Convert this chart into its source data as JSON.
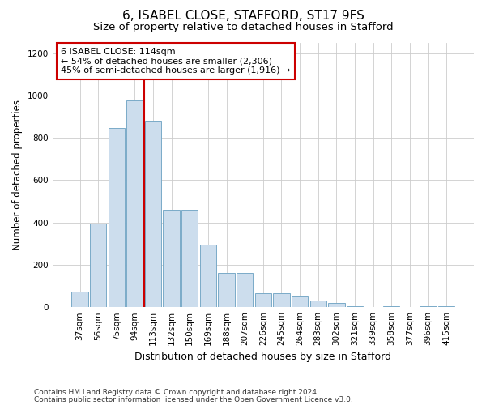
{
  "title1": "6, ISABEL CLOSE, STAFFORD, ST17 9FS",
  "title2": "Size of property relative to detached houses in Stafford",
  "xlabel": "Distribution of detached houses by size in Stafford",
  "ylabel": "Number of detached properties",
  "annotation_line1": "6 ISABEL CLOSE: 114sqm",
  "annotation_line2": "← 54% of detached houses are smaller (2,306)",
  "annotation_line3": "45% of semi-detached houses are larger (1,916) →",
  "footnote1": "Contains HM Land Registry data © Crown copyright and database right 2024.",
  "footnote2": "Contains public sector information licensed under the Open Government Licence v3.0.",
  "categories": [
    "37sqm",
    "56sqm",
    "75sqm",
    "94sqm",
    "113sqm",
    "132sqm",
    "150sqm",
    "169sqm",
    "188sqm",
    "207sqm",
    "226sqm",
    "245sqm",
    "264sqm",
    "283sqm",
    "302sqm",
    "321sqm",
    "339sqm",
    "358sqm",
    "377sqm",
    "396sqm",
    "415sqm"
  ],
  "values": [
    75,
    395,
    845,
    975,
    880,
    460,
    460,
    295,
    160,
    160,
    65,
    65,
    50,
    30,
    20,
    5,
    0,
    5,
    0,
    5,
    3
  ],
  "bar_color": "#ccdded",
  "bar_edge_color": "#7aaac8",
  "highlight_x": "113sqm",
  "highlight_color": "#cc0000",
  "ylim": [
    0,
    1250
  ],
  "yticks": [
    0,
    200,
    400,
    600,
    800,
    1000,
    1200
  ],
  "background_color": "#ffffff",
  "grid_color": "#cccccc",
  "annotation_box_color": "#ffffff",
  "annotation_box_edge": "#cc0000",
  "title1_fontsize": 11,
  "title2_fontsize": 9.5,
  "xlabel_fontsize": 9,
  "ylabel_fontsize": 8.5,
  "tick_fontsize": 7.5,
  "annotation_fontsize": 8,
  "footnote_fontsize": 6.5
}
